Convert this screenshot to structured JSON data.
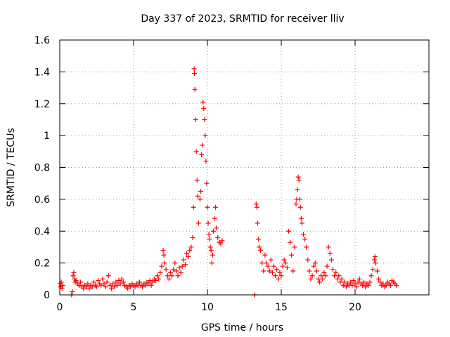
{
  "chart_data": {
    "type": "scatter",
    "title": "Day 337 of 2023, SRMTID for receiver lliv",
    "xlabel": "GPS time / hours",
    "ylabel": "SRMTID / TECUs",
    "xlim": [
      0,
      25
    ],
    "ylim": [
      0,
      1.6
    ],
    "xticks": [
      0,
      5,
      10,
      15,
      20
    ],
    "xtick_labels": [
      "0",
      "5",
      "10",
      "15",
      "20"
    ],
    "yticks": [
      0,
      0.2,
      0.4,
      0.6,
      0.8,
      1,
      1.2,
      1.4,
      1.6
    ],
    "ytick_labels": [
      "0",
      "0.2",
      "0.4",
      "0.6",
      "0.8",
      "1",
      "1.2",
      "1.4",
      "1.6"
    ],
    "grid": true,
    "marker": "+",
    "series": [
      {
        "name": "SRMTID",
        "color": "#ff0000",
        "points": [
          [
            0.0,
            0.07
          ],
          [
            0.05,
            0.05
          ],
          [
            0.1,
            0.08
          ],
          [
            0.15,
            0.04
          ],
          [
            0.2,
            0.06
          ],
          [
            0.8,
            0.0
          ],
          [
            0.85,
            0.02
          ],
          [
            0.9,
            0.12
          ],
          [
            0.95,
            0.14
          ],
          [
            1.0,
            0.1
          ],
          [
            1.05,
            0.08
          ],
          [
            1.1,
            0.09
          ],
          [
            1.2,
            0.07
          ],
          [
            1.3,
            0.06
          ],
          [
            1.4,
            0.08
          ],
          [
            1.5,
            0.05
          ],
          [
            1.6,
            0.04
          ],
          [
            1.7,
            0.06
          ],
          [
            1.8,
            0.05
          ],
          [
            1.9,
            0.07
          ],
          [
            2.0,
            0.04
          ],
          [
            2.1,
            0.06
          ],
          [
            2.2,
            0.05
          ],
          [
            2.3,
            0.08
          ],
          [
            2.4,
            0.06
          ],
          [
            2.5,
            0.05
          ],
          [
            2.6,
            0.09
          ],
          [
            2.7,
            0.07
          ],
          [
            2.8,
            0.06
          ],
          [
            2.9,
            0.1
          ],
          [
            3.0,
            0.07
          ],
          [
            3.1,
            0.05
          ],
          [
            3.2,
            0.08
          ],
          [
            3.3,
            0.12
          ],
          [
            3.4,
            0.06
          ],
          [
            3.5,
            0.04
          ],
          [
            3.6,
            0.07
          ],
          [
            3.7,
            0.05
          ],
          [
            3.8,
            0.08
          ],
          [
            3.9,
            0.06
          ],
          [
            4.0,
            0.09
          ],
          [
            4.1,
            0.07
          ],
          [
            4.2,
            0.1
          ],
          [
            4.3,
            0.08
          ],
          [
            4.4,
            0.06
          ],
          [
            4.5,
            0.05
          ],
          [
            4.6,
            0.04
          ],
          [
            4.7,
            0.06
          ],
          [
            4.8,
            0.05
          ],
          [
            4.9,
            0.07
          ],
          [
            5.0,
            0.06
          ],
          [
            5.1,
            0.05
          ],
          [
            5.2,
            0.07
          ],
          [
            5.3,
            0.06
          ],
          [
            5.4,
            0.08
          ],
          [
            5.5,
            0.06
          ],
          [
            5.6,
            0.05
          ],
          [
            5.7,
            0.07
          ],
          [
            5.8,
            0.06
          ],
          [
            5.9,
            0.08
          ],
          [
            6.0,
            0.07
          ],
          [
            6.1,
            0.09
          ],
          [
            6.2,
            0.06
          ],
          [
            6.3,
            0.08
          ],
          [
            6.4,
            0.1
          ],
          [
            6.5,
            0.09
          ],
          [
            6.6,
            0.12
          ],
          [
            6.7,
            0.1
          ],
          [
            6.8,
            0.14
          ],
          [
            6.9,
            0.18
          ],
          [
            7.0,
            0.28
          ],
          [
            7.05,
            0.25
          ],
          [
            7.1,
            0.2
          ],
          [
            7.2,
            0.16
          ],
          [
            7.3,
            0.12
          ],
          [
            7.4,
            0.1
          ],
          [
            7.5,
            0.14
          ],
          [
            7.6,
            0.12
          ],
          [
            7.7,
            0.16
          ],
          [
            7.8,
            0.2
          ],
          [
            7.9,
            0.15
          ],
          [
            8.0,
            0.12
          ],
          [
            8.1,
            0.17
          ],
          [
            8.2,
            0.14
          ],
          [
            8.3,
            0.18
          ],
          [
            8.4,
            0.22
          ],
          [
            8.5,
            0.19
          ],
          [
            8.6,
            0.26
          ],
          [
            8.7,
            0.24
          ],
          [
            8.8,
            0.28
          ],
          [
            8.9,
            0.3
          ],
          [
            9.0,
            0.36
          ],
          [
            9.05,
            0.55
          ],
          [
            9.1,
            1.42
          ],
          [
            9.12,
            1.39
          ],
          [
            9.15,
            1.29
          ],
          [
            9.2,
            1.1
          ],
          [
            9.25,
            0.9
          ],
          [
            9.3,
            0.72
          ],
          [
            9.35,
            0.62
          ],
          [
            9.4,
            0.45
          ],
          [
            9.5,
            0.6
          ],
          [
            9.55,
            0.65
          ],
          [
            9.6,
            0.88
          ],
          [
            9.65,
            0.94
          ],
          [
            9.7,
            1.21
          ],
          [
            9.75,
            1.17
          ],
          [
            9.8,
            1.1
          ],
          [
            9.85,
            1.0
          ],
          [
            9.9,
            0.84
          ],
          [
            9.95,
            0.7
          ],
          [
            10.0,
            0.55
          ],
          [
            10.05,
            0.45
          ],
          [
            10.1,
            0.38
          ],
          [
            10.15,
            0.35
          ],
          [
            10.2,
            0.3
          ],
          [
            10.25,
            0.28
          ],
          [
            10.3,
            0.2
          ],
          [
            10.35,
            0.25
          ],
          [
            10.4,
            0.4
          ],
          [
            10.5,
            0.48
          ],
          [
            10.55,
            0.55
          ],
          [
            10.6,
            0.42
          ],
          [
            10.7,
            0.36
          ],
          [
            10.8,
            0.33
          ],
          [
            10.9,
            0.32
          ],
          [
            11.0,
            0.34
          ],
          [
            13.2,
            0.0
          ],
          [
            13.3,
            0.57
          ],
          [
            13.35,
            0.55
          ],
          [
            13.4,
            0.45
          ],
          [
            13.45,
            0.35
          ],
          [
            13.5,
            0.3
          ],
          [
            13.6,
            0.28
          ],
          [
            13.7,
            0.2
          ],
          [
            13.8,
            0.15
          ],
          [
            13.9,
            0.25
          ],
          [
            14.0,
            0.2
          ],
          [
            14.1,
            0.18
          ],
          [
            14.2,
            0.15
          ],
          [
            14.3,
            0.22
          ],
          [
            14.4,
            0.14
          ],
          [
            14.5,
            0.18
          ],
          [
            14.6,
            0.12
          ],
          [
            14.7,
            0.16
          ],
          [
            14.8,
            0.1
          ],
          [
            14.9,
            0.14
          ],
          [
            15.0,
            0.12
          ],
          [
            15.1,
            0.18
          ],
          [
            15.2,
            0.22
          ],
          [
            15.3,
            0.2
          ],
          [
            15.4,
            0.17
          ],
          [
            15.5,
            0.4
          ],
          [
            15.6,
            0.33
          ],
          [
            15.7,
            0.25
          ],
          [
            15.8,
            0.15
          ],
          [
            15.9,
            0.3
          ],
          [
            16.0,
            0.57
          ],
          [
            16.05,
            0.6
          ],
          [
            16.1,
            0.66
          ],
          [
            16.15,
            0.74
          ],
          [
            16.2,
            0.72
          ],
          [
            16.25,
            0.6
          ],
          [
            16.3,
            0.55
          ],
          [
            16.35,
            0.48
          ],
          [
            16.4,
            0.45
          ],
          [
            16.5,
            0.38
          ],
          [
            16.6,
            0.35
          ],
          [
            16.7,
            0.3
          ],
          [
            16.8,
            0.22
          ],
          [
            16.9,
            0.15
          ],
          [
            17.0,
            0.1
          ],
          [
            17.1,
            0.12
          ],
          [
            17.2,
            0.18
          ],
          [
            17.3,
            0.2
          ],
          [
            17.4,
            0.15
          ],
          [
            17.5,
            0.1
          ],
          [
            17.6,
            0.08
          ],
          [
            17.7,
            0.12
          ],
          [
            17.8,
            0.1
          ],
          [
            17.9,
            0.14
          ],
          [
            18.0,
            0.12
          ],
          [
            18.1,
            0.18
          ],
          [
            18.2,
            0.3
          ],
          [
            18.3,
            0.26
          ],
          [
            18.4,
            0.22
          ],
          [
            18.5,
            0.16
          ],
          [
            18.6,
            0.12
          ],
          [
            18.7,
            0.14
          ],
          [
            18.8,
            0.1
          ],
          [
            18.9,
            0.12
          ],
          [
            19.0,
            0.08
          ],
          [
            19.1,
            0.1
          ],
          [
            19.2,
            0.06
          ],
          [
            19.3,
            0.08
          ],
          [
            19.4,
            0.05
          ],
          [
            19.5,
            0.07
          ],
          [
            19.6,
            0.06
          ],
          [
            19.7,
            0.08
          ],
          [
            19.8,
            0.06
          ],
          [
            19.9,
            0.09
          ],
          [
            20.0,
            0.07
          ],
          [
            20.1,
            0.05
          ],
          [
            20.2,
            0.08
          ],
          [
            20.3,
            0.1
          ],
          [
            20.4,
            0.07
          ],
          [
            20.5,
            0.06
          ],
          [
            20.6,
            0.08
          ],
          [
            20.7,
            0.05
          ],
          [
            20.8,
            0.07
          ],
          [
            20.9,
            0.06
          ],
          [
            21.0,
            0.08
          ],
          [
            21.1,
            0.12
          ],
          [
            21.2,
            0.16
          ],
          [
            21.3,
            0.22
          ],
          [
            21.35,
            0.24
          ],
          [
            21.4,
            0.2
          ],
          [
            21.5,
            0.15
          ],
          [
            21.6,
            0.1
          ],
          [
            21.7,
            0.08
          ],
          [
            21.8,
            0.06
          ],
          [
            21.9,
            0.07
          ],
          [
            22.0,
            0.05
          ],
          [
            22.1,
            0.06
          ],
          [
            22.2,
            0.08
          ],
          [
            22.3,
            0.07
          ],
          [
            22.4,
            0.06
          ],
          [
            22.5,
            0.09
          ],
          [
            22.6,
            0.08
          ],
          [
            22.7,
            0.07
          ],
          [
            22.8,
            0.06
          ]
        ]
      }
    ]
  }
}
